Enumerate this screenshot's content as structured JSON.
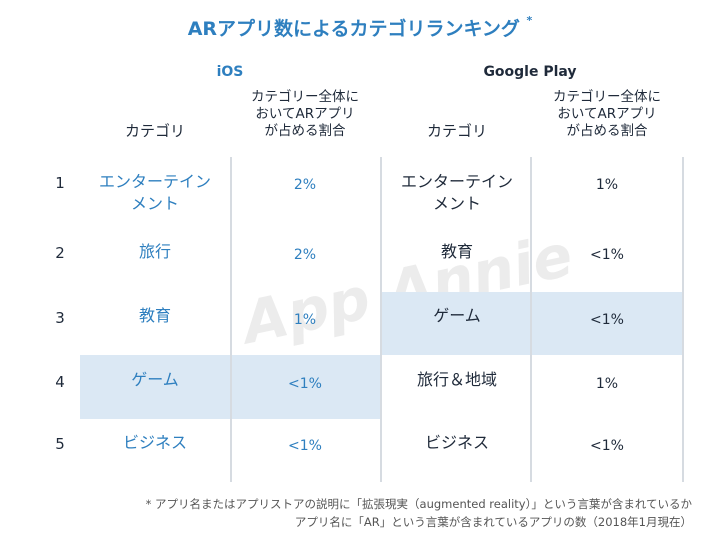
{
  "chart_data": {
    "type": "table",
    "title": "ARアプリ数によるカテゴリランキング",
    "title_mark": "*",
    "groups": [
      {
        "platform": "iOS",
        "col_category": "カテゴリ",
        "col_share_lines": [
          "カテゴリー全体に",
          "おいてARアプリ",
          "が占める割合"
        ],
        "rows": [
          {
            "category_lines": [
              "エンターテイン",
              "メント"
            ],
            "share": "2%"
          },
          {
            "category_lines": [
              "旅行"
            ],
            "share": "2%"
          },
          {
            "category_lines": [
              "教育"
            ],
            "share": "1%"
          },
          {
            "category_lines": [
              "ゲーム"
            ],
            "share": "<1%",
            "highlight": true
          },
          {
            "category_lines": [
              "ビジネス"
            ],
            "share": "<1%"
          }
        ]
      },
      {
        "platform": "Google Play",
        "col_category": "カテゴリ",
        "col_share_lines": [
          "カテゴリー全体に",
          "おいてARアプリ",
          "が占める割合"
        ],
        "rows": [
          {
            "category_lines": [
              "エンターテイン",
              "メント"
            ],
            "share": "1%"
          },
          {
            "category_lines": [
              "教育"
            ],
            "share": "<1%"
          },
          {
            "category_lines": [
              "ゲーム"
            ],
            "share": "<1%",
            "highlight": true
          },
          {
            "category_lines": [
              "旅行＆地域"
            ],
            "share": "1%"
          },
          {
            "category_lines": [
              "ビジネス"
            ],
            "share": "<1%"
          }
        ]
      }
    ],
    "ranks": [
      "1",
      "2",
      "3",
      "4",
      "5"
    ]
  },
  "watermark": "App Annie",
  "footnote": {
    "mark": "*",
    "line1": "アプリ名またはアプリストアの説明に「拡張現実（augmented reality）」という言葉が含まれているか",
    "line2": "アプリ名に「AR」という言葉が含まれているアプリの数（2018年1月現在）"
  },
  "colors": {
    "accent": "#2e7fbf",
    "highlight": "#dbe8f4",
    "text": "#1f2a3a",
    "divider": "#d6dbe1"
  }
}
